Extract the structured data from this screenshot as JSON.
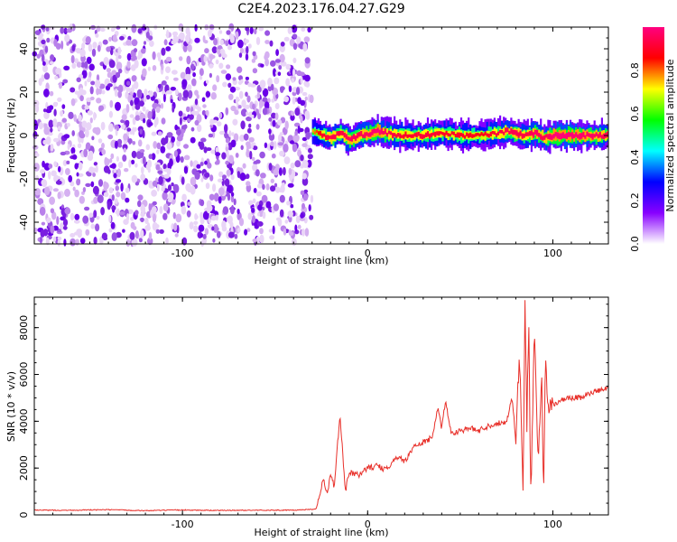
{
  "figure": {
    "title": "C2E4.2023.176.04.27.G29"
  },
  "colorbar": {
    "label": "Normalized spectral amplitude",
    "ticks": [
      "0.0",
      "0.2",
      "0.4",
      "0.6",
      "0.8"
    ],
    "range": [
      0,
      1
    ],
    "colors": [
      "#ffffff",
      "#8800ff",
      "#0000ff",
      "#00ffff",
      "#00ff00",
      "#ffff00",
      "#ff0000",
      "#ff0080"
    ]
  },
  "chart_data": [
    {
      "type": "heatmap",
      "title": "",
      "xlabel": "Height of straight line (km)",
      "ylabel": "Frequency (Hz)",
      "xlim": [
        -180,
        130
      ],
      "ylim": [
        -50,
        50
      ],
      "xticks": [
        "-100",
        "0",
        "100"
      ],
      "yticks": [
        "-40",
        "-20",
        "0",
        "20",
        "40"
      ],
      "noise_region_x": [
        -180,
        -30
      ],
      "signal_band": {
        "x": [
          -30,
          -25,
          -20,
          -15,
          -10,
          -5,
          0,
          5,
          10,
          20,
          30,
          40,
          50,
          60,
          70,
          75,
          80,
          85,
          90,
          95,
          100,
          110,
          120,
          130
        ],
        "center_hz": [
          2,
          0,
          -1,
          1,
          -2,
          0,
          1,
          2,
          1,
          0,
          0,
          1,
          0,
          0,
          1,
          2,
          1,
          0,
          1,
          -1,
          0,
          0,
          0,
          0
        ],
        "peak_amplitude": [
          0.5,
          0.8,
          0.9,
          0.85,
          0.95,
          0.9,
          0.95,
          1.0,
          0.9,
          0.8,
          0.85,
          0.8,
          0.8,
          0.75,
          0.85,
          0.9,
          0.9,
          0.85,
          0.95,
          0.9,
          1.0,
          1.0,
          0.95,
          0.9
        ]
      }
    },
    {
      "type": "line",
      "title": "",
      "xlabel": "Height of straight line (km)",
      "ylabel": "SNR (10 * v/v)",
      "xlim": [
        -180,
        130
      ],
      "ylim": [
        0,
        9300
      ],
      "xticks": [
        "-100",
        "0",
        "100"
      ],
      "yticks": [
        "0",
        "2000",
        "4000",
        "6000",
        "8000"
      ],
      "color": "#e8302a",
      "x": [
        -180,
        -160,
        -140,
        -120,
        -100,
        -80,
        -60,
        -40,
        -28,
        -24,
        -22,
        -20,
        -18,
        -15,
        -12,
        -10,
        -5,
        0,
        5,
        10,
        15,
        20,
        25,
        30,
        35,
        38,
        40,
        42,
        45,
        50,
        55,
        60,
        65,
        70,
        75,
        78,
        80,
        82,
        84,
        85,
        86,
        87,
        88,
        90,
        92,
        94,
        95,
        96,
        98,
        100,
        105,
        110,
        115,
        120,
        125,
        130
      ],
      "y": [
        200,
        200,
        220,
        180,
        210,
        190,
        200,
        200,
        250,
        1500,
        900,
        1700,
        1200,
        4300,
        1000,
        1800,
        1700,
        2000,
        2100,
        1900,
        2500,
        2300,
        2900,
        3100,
        3300,
        4600,
        3700,
        4900,
        3500,
        3600,
        3700,
        3600,
        3800,
        3900,
        4000,
        5000,
        3200,
        7000,
        1200,
        9300,
        3500,
        8800,
        500,
        7800,
        2200,
        5800,
        1000,
        6400,
        4400,
        4700,
        4900,
        5000,
        5000,
        5200,
        5300,
        5400
      ]
    }
  ]
}
